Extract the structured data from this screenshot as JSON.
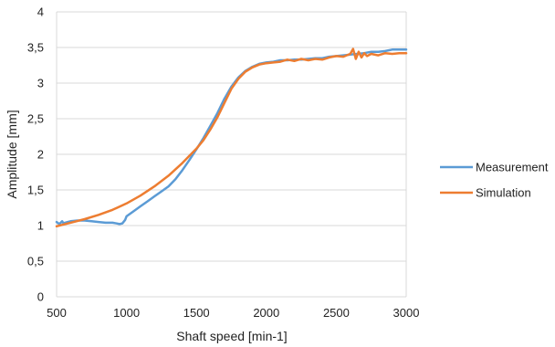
{
  "chart_data": {
    "type": "line",
    "title": "",
    "xlabel": "Shaft speed [min-1]",
    "ylabel": "Amplitude [mm]",
    "xlim": [
      500,
      3000
    ],
    "ylim": [
      0,
      4
    ],
    "x_ticks": [
      500,
      1000,
      1500,
      2000,
      2500,
      3000
    ],
    "y_ticks": [
      0,
      0.5,
      1,
      1.5,
      2,
      2.5,
      3,
      3.5,
      4
    ],
    "x_tick_labels": [
      "500",
      "1000",
      "1500",
      "2000",
      "2500",
      "3000"
    ],
    "y_tick_labels": [
      "0",
      "0,5",
      "1",
      "1,5",
      "2",
      "2,5",
      "3",
      "3,5",
      "4"
    ],
    "grid": "horizontal",
    "legend_position": "right",
    "series": [
      {
        "name": "Measurement",
        "color": "#5B9BD5",
        "x": [
          500,
          520,
          540,
          550,
          560,
          580,
          600,
          650,
          700,
          750,
          800,
          850,
          900,
          930,
          950,
          970,
          990,
          1000,
          1050,
          1100,
          1150,
          1200,
          1250,
          1300,
          1350,
          1400,
          1450,
          1500,
          1550,
          1600,
          1650,
          1700,
          1750,
          1800,
          1850,
          1900,
          1950,
          2000,
          2050,
          2100,
          2150,
          2200,
          2250,
          2300,
          2350,
          2400,
          2450,
          2500,
          2550,
          2600,
          2650,
          2700,
          2750,
          2800,
          2850,
          2900,
          2950,
          3000
        ],
        "y": [
          1.05,
          1.02,
          1.06,
          1.03,
          1.04,
          1.05,
          1.06,
          1.07,
          1.07,
          1.06,
          1.05,
          1.04,
          1.04,
          1.03,
          1.02,
          1.03,
          1.08,
          1.13,
          1.2,
          1.27,
          1.34,
          1.41,
          1.48,
          1.55,
          1.65,
          1.78,
          1.92,
          2.07,
          2.23,
          2.4,
          2.58,
          2.78,
          2.95,
          3.08,
          3.17,
          3.23,
          3.27,
          3.29,
          3.3,
          3.32,
          3.32,
          3.33,
          3.33,
          3.34,
          3.35,
          3.35,
          3.37,
          3.38,
          3.39,
          3.4,
          3.41,
          3.42,
          3.44,
          3.44,
          3.45,
          3.47,
          3.47,
          3.47
        ]
      },
      {
        "name": "Simulation",
        "color": "#ED7D31",
        "x": [
          500,
          600,
          700,
          800,
          900,
          1000,
          1100,
          1200,
          1300,
          1400,
          1450,
          1500,
          1550,
          1600,
          1650,
          1700,
          1750,
          1800,
          1850,
          1900,
          1950,
          2000,
          2050,
          2100,
          2150,
          2200,
          2250,
          2300,
          2350,
          2400,
          2450,
          2500,
          2550,
          2600,
          2620,
          2640,
          2660,
          2680,
          2700,
          2720,
          2750,
          2800,
          2850,
          2900,
          2950,
          3000
        ],
        "y": [
          0.99,
          1.04,
          1.09,
          1.15,
          1.22,
          1.31,
          1.42,
          1.55,
          1.7,
          1.88,
          1.98,
          2.08,
          2.2,
          2.35,
          2.52,
          2.72,
          2.92,
          3.06,
          3.16,
          3.22,
          3.26,
          3.28,
          3.29,
          3.3,
          3.33,
          3.31,
          3.34,
          3.32,
          3.34,
          3.33,
          3.36,
          3.38,
          3.37,
          3.41,
          3.48,
          3.34,
          3.44,
          3.36,
          3.42,
          3.38,
          3.41,
          3.39,
          3.42,
          3.41,
          3.42,
          3.42
        ]
      }
    ]
  }
}
